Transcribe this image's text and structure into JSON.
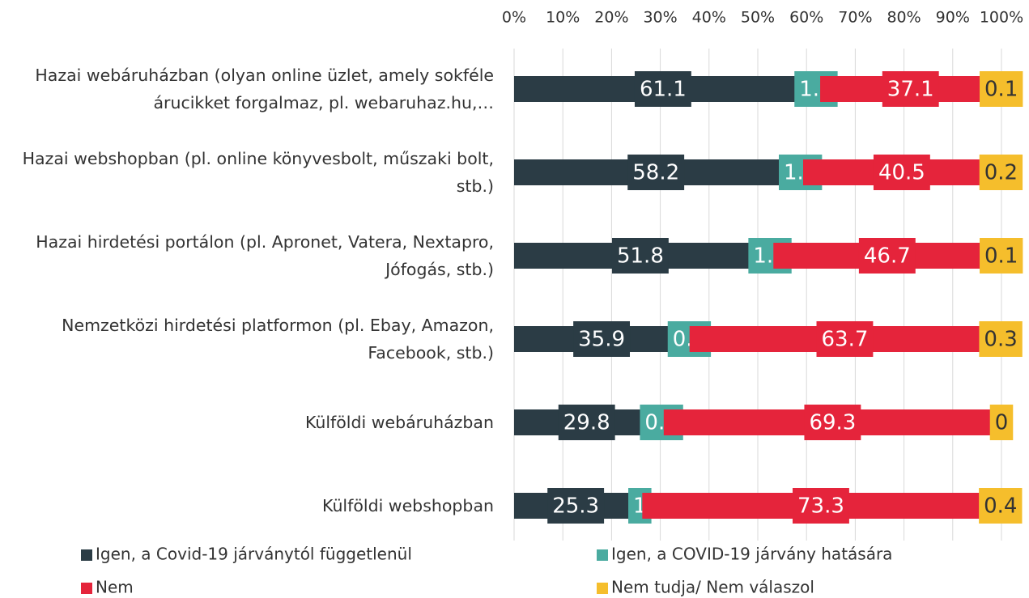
{
  "chart_data": {
    "type": "stacked-bar-horizontal",
    "categories": [
      "Hazai webáruházban (olyan online üzlet, amely sokféle árucikket forgalmaz, pl. webaruhaz.hu,…",
      "Hazai webshopban (pl. online könyvesbolt, műszaki bolt, stb.)",
      "Hazai hirdetési portálon (pl. Apronet, Vatera, Nextapro, Jófogás, stb.)",
      "Nemzetközi hirdetési platformon (pl. Ebay, Amazon, Facebook, stb.)",
      "Külföldi webáruházban",
      "Külföldi webshopban"
    ],
    "series": [
      {
        "name": "Igen, a Covid-19 járványtól függetlenül",
        "color": "#2b3c45",
        "values": [
          61.1,
          58.2,
          51.8,
          35.9,
          29.8,
          25.3
        ]
      },
      {
        "name": "Igen, a COVID-19 járvány hatására",
        "color": "#4aaba0",
        "values": [
          1.7,
          1.1,
          1.4,
          0.1,
          0.9,
          1
        ]
      },
      {
        "name": "Nem",
        "color": "#e5243b",
        "values": [
          37.1,
          40.5,
          46.7,
          63.7,
          69.3,
          73.3
        ]
      },
      {
        "name": "Nem tudja/ Nem válaszol",
        "color": "#f5be2c",
        "values": [
          0.1,
          0.2,
          0.1,
          0.3,
          0,
          0.4
        ]
      }
    ],
    "xlim": [
      0,
      100
    ],
    "xticks": [
      {
        "value": 0,
        "label": "0%"
      },
      {
        "value": 10,
        "label": "10%"
      },
      {
        "value": 20,
        "label": "20%"
      },
      {
        "value": 30,
        "label": "30%"
      },
      {
        "value": 40,
        "label": "40%"
      },
      {
        "value": 50,
        "label": "50%"
      },
      {
        "value": 60,
        "label": "60%"
      },
      {
        "value": 70,
        "label": "70%"
      },
      {
        "value": 80,
        "label": "80%"
      },
      {
        "value": 90,
        "label": "90%"
      },
      {
        "value": 100,
        "label": "100%"
      }
    ],
    "grid": true
  }
}
